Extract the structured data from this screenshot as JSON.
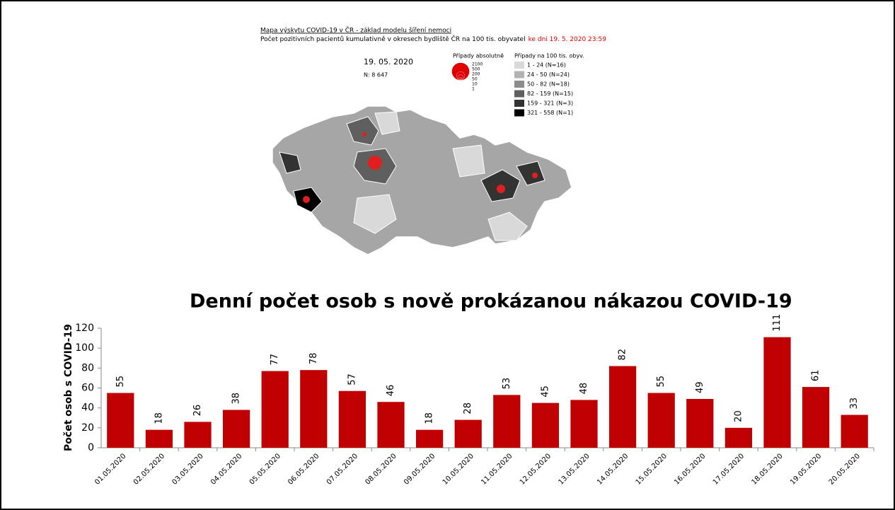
{
  "map": {
    "title": "Mapa výskytu COVID-19 v ČR - základ modelu šíření nemoci",
    "subtitle": "Počet pozitivních pacientů kumulativně v okresech bydliště ČR na 100 tis. obyvatel",
    "subtitle_date": "ke dni 19. 5. 2020 23:59",
    "date": "19. 05. 2020",
    "total": "N: 8 647",
    "bubble_legend": {
      "title": "Případy absolutně",
      "sizes": [
        2100,
        500,
        200,
        50,
        10,
        1
      ]
    },
    "color_legend": {
      "title": "Případy na 100 tis. obyv.",
      "labels": [
        "1 - 24 (N=16)",
        "24 - 50 (N=24)",
        "50 - 82 (N=18)",
        "82 - 159 (N=15)",
        "159 - 321 (N=3)",
        "321 - 558 (N=1)"
      ],
      "colors": [
        "#d9d9d9",
        "#b2b2b2",
        "#8c8c8c",
        "#5f5f5f",
        "#333333",
        "#000000"
      ]
    }
  },
  "chart_data": {
    "type": "bar",
    "title": "Denní počet osob s nově prokázanou nákazou COVID-19",
    "y_label": "Počet osob s COVID-19",
    "categories": [
      "01.05.2020",
      "02.05.2020",
      "03.05.2020",
      "04.05.2020",
      "05.05.2020",
      "06.05.2020",
      "07.05.2020",
      "08.05.2020",
      "09.05.2020",
      "10.05.2020",
      "11.05.2020",
      "12.05.2020",
      "13.05.2020",
      "14.05.2020",
      "15.05.2020",
      "16.05.2020",
      "17.05.2020",
      "18.05.2020",
      "19.05.2020",
      "20.05.2020"
    ],
    "values": [
      55,
      18,
      26,
      38,
      77,
      78,
      57,
      46,
      18,
      28,
      53,
      45,
      48,
      82,
      55,
      49,
      20,
      111,
      61,
      33
    ],
    "color": "#c00000",
    "ylim": [
      0,
      120
    ],
    "yticks": [
      0,
      20,
      40,
      60,
      80,
      100,
      120
    ],
    "grid": false
  }
}
